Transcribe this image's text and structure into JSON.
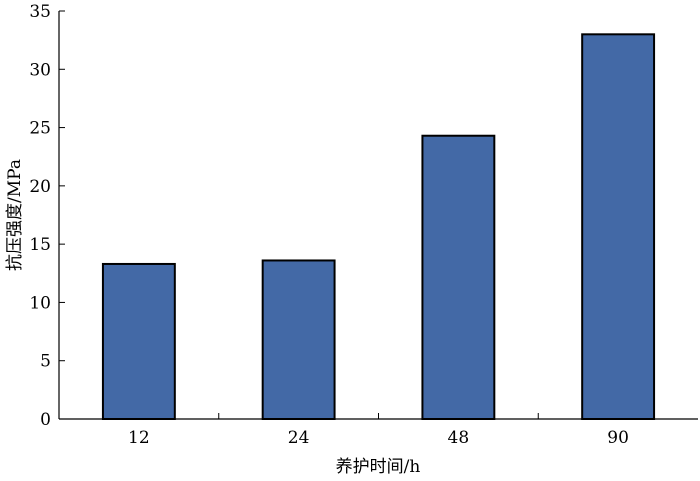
{
  "chart_data": {
    "type": "bar",
    "categories": [
      "12",
      "24",
      "48",
      "90"
    ],
    "values": [
      13.3,
      13.6,
      24.3,
      33.0
    ],
    "xlabel": "养护时间/h",
    "ylabel": "抗压强度/MPa",
    "ylim": [
      0,
      35
    ],
    "yticks": [
      0,
      5,
      10,
      15,
      20,
      25,
      30,
      35
    ],
    "grid": false,
    "legend": "none",
    "bar_color": "#4369a6"
  }
}
